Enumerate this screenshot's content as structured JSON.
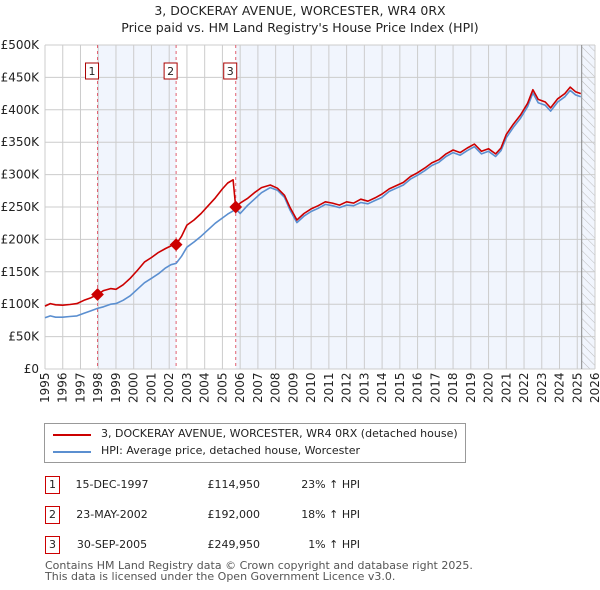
{
  "chart_data": {
    "type": "line",
    "title": "3, DOCKERAY AVENUE, WORCESTER, WR4 0RX",
    "subtitle": "Price paid vs. HM Land Registry's House Price Index (HPI)",
    "xlabel": "",
    "ylabel": "",
    "xlim": [
      1995,
      2026
    ],
    "ylim": [
      0,
      500000
    ],
    "grid": true,
    "x_ticks": [
      "1995",
      "1996",
      "1997",
      "1998",
      "1999",
      "2000",
      "2001",
      "2002",
      "2003",
      "2004",
      "2005",
      "2006",
      "2007",
      "2008",
      "2009",
      "2010",
      "2011",
      "2012",
      "2013",
      "2014",
      "2015",
      "2016",
      "2017",
      "2018",
      "2019",
      "2020",
      "2021",
      "2022",
      "2023",
      "2024",
      "2025",
      "2026"
    ],
    "y_ticks": [
      {
        "value": 0,
        "label": "£0"
      },
      {
        "value": 50000,
        "label": "£50K"
      },
      {
        "value": 100000,
        "label": "£100K"
      },
      {
        "value": 150000,
        "label": "£150K"
      },
      {
        "value": 200000,
        "label": "£200K"
      },
      {
        "value": 250000,
        "label": "£250K"
      },
      {
        "value": 300000,
        "label": "£300K"
      },
      {
        "value": 350000,
        "label": "£350K"
      },
      {
        "value": 400000,
        "label": "£400K"
      },
      {
        "value": 450000,
        "label": "£450K"
      },
      {
        "value": 500000,
        "label": "£500K"
      }
    ],
    "legend_position": "below",
    "series": [
      {
        "name": "3, DOCKERAY AVENUE, WORCESTER, WR4 0RX (detached house)",
        "color": "#cc0000",
        "x": [
          1995.0,
          1995.3,
          1995.6,
          1996.0,
          1996.4,
          1996.8,
          1997.2,
          1997.6,
          1997.96,
          1998.3,
          1998.7,
          1999.0,
          1999.4,
          1999.8,
          2000.2,
          2000.6,
          2001.0,
          2001.4,
          2001.8,
          2002.1,
          2002.39,
          2002.7,
          2003.0,
          2003.4,
          2003.8,
          2004.2,
          2004.6,
          2005.0,
          2005.3,
          2005.6,
          2005.75,
          2006.0,
          2006.4,
          2006.8,
          2007.2,
          2007.7,
          2008.1,
          2008.5,
          2008.8,
          2009.2,
          2009.6,
          2010.0,
          2010.4,
          2010.8,
          2011.2,
          2011.6,
          2012.0,
          2012.4,
          2012.8,
          2013.2,
          2013.6,
          2014.0,
          2014.4,
          2014.8,
          2015.2,
          2015.6,
          2016.0,
          2016.4,
          2016.8,
          2017.2,
          2017.6,
          2018.0,
          2018.4,
          2018.8,
          2019.2,
          2019.6,
          2020.0,
          2020.4,
          2020.7,
          2021.0,
          2021.4,
          2021.8,
          2022.2,
          2022.5,
          2022.8,
          2023.2,
          2023.5,
          2023.9,
          2024.3,
          2024.6,
          2024.9,
          2025.2
        ],
        "values": [
          97000,
          101000,
          99000,
          98500,
          99500,
          101000,
          106000,
          110000,
          114950,
          121000,
          124000,
          123000,
          130000,
          140000,
          152000,
          165000,
          172000,
          180000,
          186000,
          190000,
          192000,
          205000,
          222000,
          230000,
          240000,
          252000,
          264000,
          278000,
          287000,
          292000,
          249950,
          256000,
          263000,
          272000,
          280000,
          284000,
          279000,
          268000,
          250000,
          230000,
          240000,
          247000,
          252000,
          258000,
          256000,
          253000,
          258000,
          256000,
          262000,
          259000,
          264000,
          270000,
          278000,
          283000,
          288000,
          297000,
          303000,
          310000,
          318000,
          323000,
          332000,
          338000,
          334000,
          341000,
          347000,
          336000,
          340000,
          332000,
          341000,
          362000,
          378000,
          392000,
          410000,
          431000,
          416000,
          412000,
          403000,
          417000,
          425000,
          435000,
          428000,
          425000
        ]
      },
      {
        "name": "HPI: Average price, detached house, Worcester",
        "color": "#5b8fd0",
        "x": [
          1995.0,
          1995.3,
          1995.6,
          1996.0,
          1996.4,
          1996.8,
          1997.2,
          1997.6,
          1997.96,
          1998.3,
          1998.7,
          1999.0,
          1999.4,
          1999.8,
          2000.2,
          2000.6,
          2001.0,
          2001.4,
          2001.8,
          2002.1,
          2002.39,
          2002.7,
          2003.0,
          2003.4,
          2003.8,
          2004.2,
          2004.6,
          2005.0,
          2005.3,
          2005.6,
          2005.75,
          2006.0,
          2006.4,
          2006.8,
          2007.2,
          2007.7,
          2008.1,
          2008.5,
          2008.8,
          2009.2,
          2009.6,
          2010.0,
          2010.4,
          2010.8,
          2011.2,
          2011.6,
          2012.0,
          2012.4,
          2012.8,
          2013.2,
          2013.6,
          2014.0,
          2014.4,
          2014.8,
          2015.2,
          2015.6,
          2016.0,
          2016.4,
          2016.8,
          2017.2,
          2017.6,
          2018.0,
          2018.4,
          2018.8,
          2019.2,
          2019.6,
          2020.0,
          2020.4,
          2020.7,
          2021.0,
          2021.4,
          2021.8,
          2022.2,
          2022.5,
          2022.8,
          2023.2,
          2023.5,
          2023.9,
          2024.3,
          2024.6,
          2024.9,
          2025.2
        ],
        "values": [
          79000,
          82000,
          80000,
          80000,
          81000,
          82000,
          86000,
          90000,
          93500,
          96000,
          100000,
          101000,
          106000,
          113000,
          123000,
          133000,
          140000,
          147000,
          156000,
          161000,
          163000,
          174000,
          188000,
          196000,
          205000,
          215000,
          225000,
          233000,
          239000,
          244000,
          247000,
          240000,
          252000,
          262000,
          272000,
          280000,
          276000,
          265000,
          246000,
          226000,
          236000,
          243000,
          248000,
          254000,
          252000,
          249000,
          253000,
          252000,
          257000,
          255000,
          260000,
          265000,
          274000,
          279000,
          284000,
          293000,
          299000,
          306000,
          314000,
          319000,
          328000,
          334000,
          330000,
          337000,
          343000,
          332000,
          336000,
          328000,
          337000,
          357000,
          373000,
          387000,
          405000,
          426000,
          411000,
          407000,
          398000,
          412000,
          420000,
          430000,
          423000,
          420000
        ]
      }
    ],
    "annotations": [
      {
        "label": "1",
        "x": 1997.96,
        "value": 114950
      },
      {
        "label": "2",
        "x": 2002.39,
        "value": 192000
      },
      {
        "label": "3",
        "x": 2005.75,
        "value": 249950
      }
    ],
    "shaded_ranges": [
      [
        1997.96,
        2002.39
      ],
      [
        2005.75,
        2026
      ]
    ],
    "hatched_from": 2025.25
  },
  "legend": {
    "items": [
      {
        "label": "3, DOCKERAY AVENUE, WORCESTER, WR4 0RX (detached house)",
        "color": "#cc0000"
      },
      {
        "label": "HPI: Average price, detached house, Worcester",
        "color": "#5b8fd0"
      }
    ]
  },
  "transactions": [
    {
      "num": "1",
      "date": "15-DEC-1997",
      "price": "£114,950",
      "hpi": "23% ↑ HPI"
    },
    {
      "num": "2",
      "date": "23-MAY-2002",
      "price": "£192,000",
      "hpi": "18% ↑ HPI"
    },
    {
      "num": "3",
      "date": "30-SEP-2005",
      "price": "£249,950",
      "hpi": "1% ↑ HPI"
    }
  ],
  "footer": {
    "line1": "Contains HM Land Registry data © Crown copyright and database right 2025.",
    "line2": "This data is licensed under the Open Government Licence v3.0."
  }
}
